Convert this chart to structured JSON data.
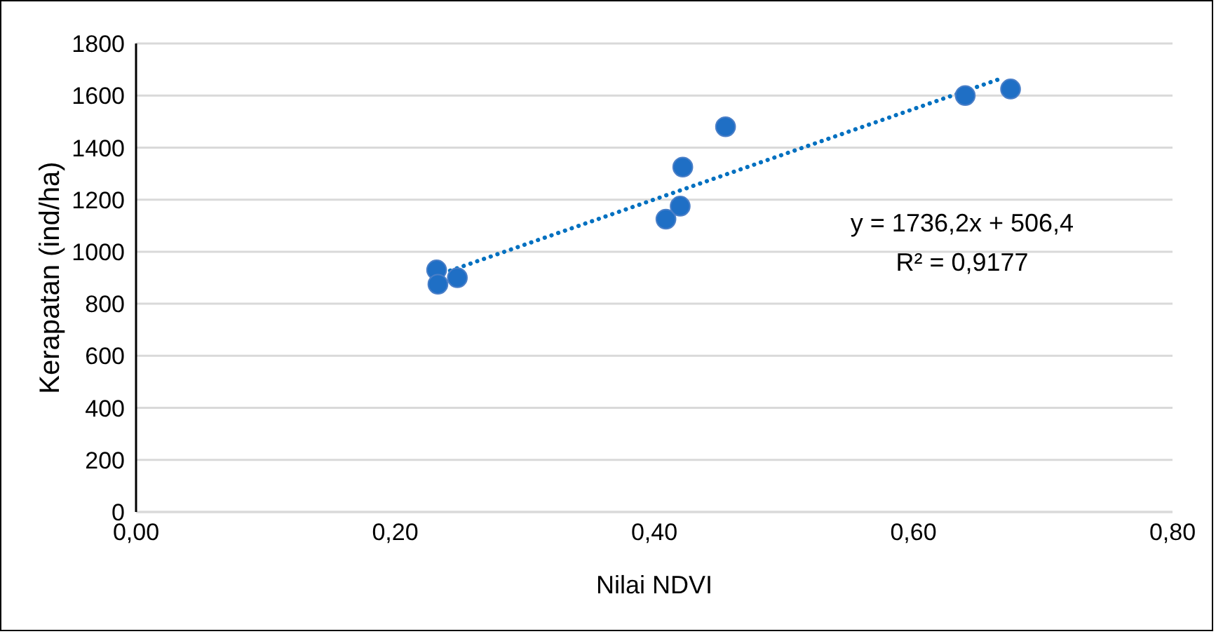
{
  "chart_data": {
    "type": "scatter",
    "xlabel": "Nilai NDVI",
    "ylabel": "Kerapatan (ind/ha)",
    "series": [
      {
        "color": "#1f6fc5",
        "x": [
          0.232,
          0.233,
          0.248,
          0.409,
          0.42,
          0.422,
          0.455,
          0.64,
          0.675
        ],
        "values": [
          930,
          875,
          900,
          1125,
          1175,
          1325,
          1480,
          1600,
          1625
        ]
      },
      {
        "type": "line",
        "color": "#0070c0",
        "line_style": "dotted",
        "marker": "none",
        "x": [
          0.232,
          0.668
        ],
        "values": [
          909,
          1666
        ]
      }
    ],
    "xlim": [
      0,
      0.8
    ],
    "xticks": [
      {
        "value": 0,
        "label": "0,00"
      },
      {
        "value": 0.2,
        "label": "0,20"
      },
      {
        "value": 0.4,
        "label": "0,40"
      },
      {
        "value": 0.6,
        "label": "0,60"
      },
      {
        "value": 0.8,
        "label": "0,80"
      }
    ],
    "ylim": [
      0,
      1800
    ],
    "yticks": [
      0,
      200,
      400,
      600,
      800,
      1000,
      1200,
      1400,
      1600,
      1800
    ],
    "grid": "y",
    "marker": "circle",
    "annotations": [
      "y = 1736,2x + 506,4",
      "R² = 0,9177"
    ]
  }
}
